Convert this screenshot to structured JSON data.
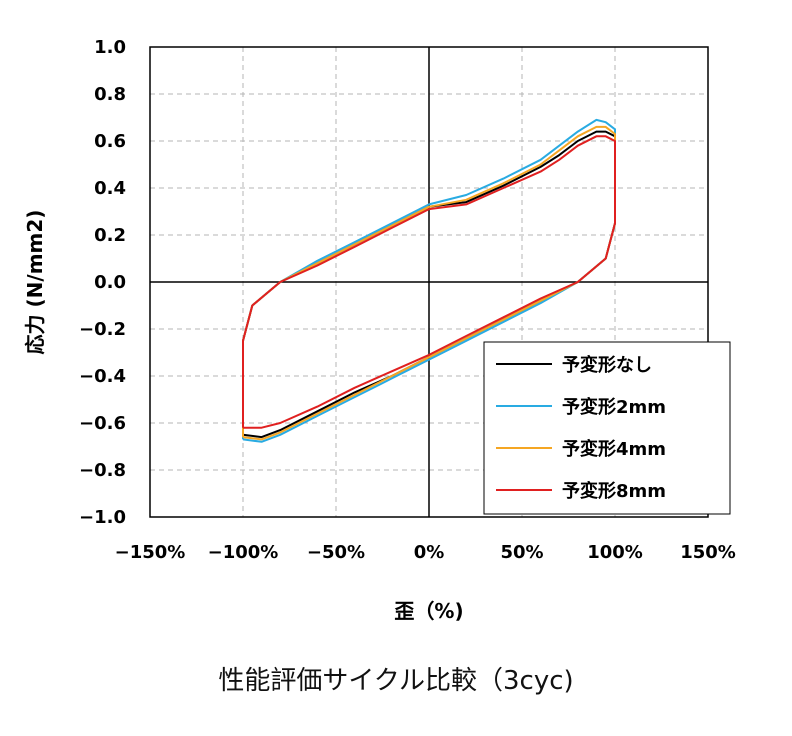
{
  "caption": "性能評価サイクル比較（3cyc)",
  "chart_data": {
    "type": "line",
    "title": "",
    "xlabel": "歪（%)",
    "ylabel": "応力 (N/mm2)",
    "xlim": [
      -150,
      150
    ],
    "ylim": [
      -1.0,
      1.0
    ],
    "x_tick_labels": [
      "−150%",
      "−100%",
      "−50%",
      "0%",
      "50%",
      "100%",
      "150%"
    ],
    "y_tick_labels": [
      "1.0",
      "0.8",
      "0.6",
      "0.4",
      "0.2",
      "0.0",
      "−0.2",
      "−0.4",
      "−0.6",
      "−0.8",
      "−1.0"
    ],
    "x_ticks": [
      -150,
      -100,
      -50,
      0,
      50,
      100,
      150
    ],
    "y_ticks": [
      1.0,
      0.8,
      0.6,
      0.4,
      0.2,
      0.0,
      -0.2,
      -0.4,
      -0.6,
      -0.8,
      -1.0
    ],
    "grid": true,
    "legend_position": "bottom-right",
    "series": [
      {
        "name": "予変形なし",
        "color": "#000000",
        "x": [
          -100,
          -90,
          -80,
          -60,
          -40,
          -20,
          0,
          20,
          40,
          60,
          80,
          95,
          100,
          100,
          95,
          90,
          80,
          70,
          60,
          40,
          20,
          0,
          -20,
          -40,
          -60,
          -80,
          -95,
          -100,
          -100
        ],
        "y": [
          -0.65,
          -0.66,
          -0.63,
          -0.55,
          -0.47,
          -0.4,
          -0.32,
          -0.24,
          -0.16,
          -0.08,
          0.0,
          0.1,
          0.25,
          0.62,
          0.64,
          0.64,
          0.6,
          0.54,
          0.49,
          0.41,
          0.34,
          0.32,
          0.24,
          0.16,
          0.08,
          0.0,
          -0.1,
          -0.25,
          -0.65
        ]
      },
      {
        "name": "予変形2mm",
        "color": "#29ABE2",
        "x": [
          -100,
          -90,
          -80,
          -60,
          -40,
          -20,
          0,
          20,
          40,
          60,
          80,
          95,
          100,
          100,
          95,
          90,
          80,
          70,
          60,
          40,
          20,
          0,
          -20,
          -40,
          -60,
          -80,
          -95,
          -100,
          -100
        ],
        "y": [
          -0.67,
          -0.68,
          -0.65,
          -0.57,
          -0.49,
          -0.41,
          -0.33,
          -0.25,
          -0.17,
          -0.09,
          0.0,
          0.1,
          0.25,
          0.65,
          0.68,
          0.69,
          0.64,
          0.58,
          0.52,
          0.44,
          0.37,
          0.33,
          0.25,
          0.17,
          0.09,
          0.0,
          -0.1,
          -0.25,
          -0.67
        ]
      },
      {
        "name": "予変形4mm",
        "color": "#F5A623",
        "x": [
          -100,
          -90,
          -80,
          -60,
          -40,
          -20,
          0,
          20,
          40,
          60,
          80,
          95,
          100,
          100,
          95,
          90,
          80,
          70,
          60,
          40,
          20,
          0,
          -20,
          -40,
          -60,
          -80,
          -95,
          -100,
          -100
        ],
        "y": [
          -0.66,
          -0.67,
          -0.64,
          -0.56,
          -0.48,
          -0.4,
          -0.32,
          -0.24,
          -0.16,
          -0.08,
          0.0,
          0.1,
          0.25,
          0.63,
          0.66,
          0.66,
          0.62,
          0.56,
          0.5,
          0.42,
          0.35,
          0.32,
          0.24,
          0.16,
          0.08,
          0.0,
          -0.1,
          -0.25,
          -0.66
        ]
      },
      {
        "name": "予変形8mm",
        "color": "#E02020",
        "x": [
          -100,
          -90,
          -80,
          -60,
          -40,
          -20,
          0,
          20,
          40,
          60,
          80,
          95,
          100,
          100,
          95,
          90,
          80,
          70,
          60,
          40,
          20,
          0,
          -20,
          -40,
          -60,
          -80,
          -95,
          -100,
          -100
        ],
        "y": [
          -0.62,
          -0.62,
          -0.6,
          -0.53,
          -0.45,
          -0.38,
          -0.31,
          -0.23,
          -0.15,
          -0.07,
          0.0,
          0.1,
          0.25,
          0.6,
          0.62,
          0.62,
          0.58,
          0.52,
          0.47,
          0.4,
          0.33,
          0.31,
          0.23,
          0.15,
          0.07,
          0.0,
          -0.1,
          -0.25,
          -0.62
        ]
      }
    ]
  }
}
